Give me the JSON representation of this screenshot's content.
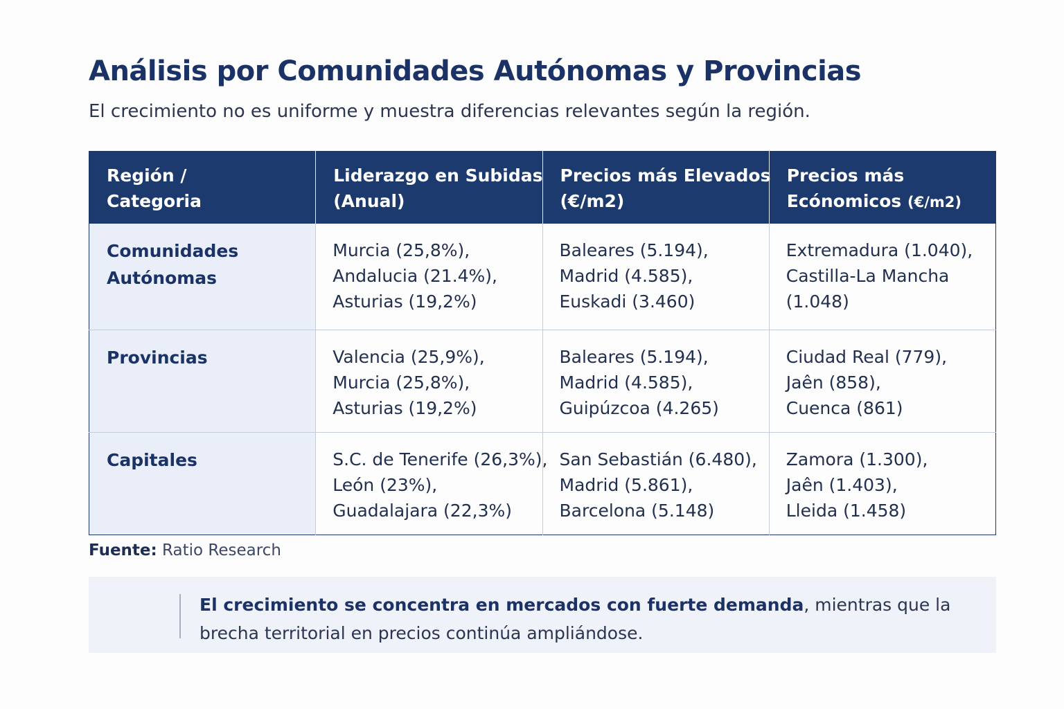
{
  "header": {
    "title": "Análisis por Comunidades Autónomas y Provincias",
    "subtitle": "El crecimiento no es uniforme y muestra diferencias relevantes según la región."
  },
  "table": {
    "columns": [
      {
        "line1": "Región /",
        "line2": "Categoria"
      },
      {
        "line1": "Liderazgo en Subidas",
        "line2": "(Anual)"
      },
      {
        "line1": "Precios más Elevados",
        "line2": "(€/m2)"
      },
      {
        "line1": "Precios más",
        "line2": "Ecónomicos",
        "unit": "(€/m2)"
      }
    ],
    "rows": [
      {
        "region": [
          "Comunidades",
          "Autónomas"
        ],
        "subidas": [
          "Murcia (25,8%),",
          "Andalucia (21.4%),",
          "Asturias (19,2%)"
        ],
        "elevados": [
          "Baleares (5.194),",
          "Madrid (4.585),",
          "Euskadi (3.460)"
        ],
        "economicos": [
          "Extremadura (1.040),",
          "Castilla-La Mancha",
          "(1.048)"
        ]
      },
      {
        "region": [
          "Provincias"
        ],
        "subidas": [
          "Valencia (25,9%),",
          "Murcia (25,8%),",
          "Asturias (19,2%)"
        ],
        "elevados": [
          "Baleares (5.194),",
          "Madrid (4.585),",
          "Guipúzcoa (4.265)"
        ],
        "economicos": [
          "Ciudad Real (779),",
          "Jaên (858),",
          "Cuenca (861)"
        ]
      },
      {
        "region": [
          "Capitales"
        ],
        "subidas": [
          "S.C. de Tenerife (26,3%),",
          "León (23%),",
          "Guadalajara (22,3%)"
        ],
        "elevados": [
          "San Sebastián (6.480),",
          "Madrid (5.861),",
          "Barcelona (5.148)"
        ],
        "economicos": [
          "Zamora (1.300),",
          "Jaên (1.403),",
          "Lleida (1.458)"
        ]
      }
    ]
  },
  "source": {
    "label": "Fuente:",
    "value": "Ratio Research"
  },
  "note": {
    "bold": "El crecimiento se concentra en mercados con fuerte demanda",
    "rest": ", mientras que la brecha territorial en precios continúa ampliándose."
  }
}
